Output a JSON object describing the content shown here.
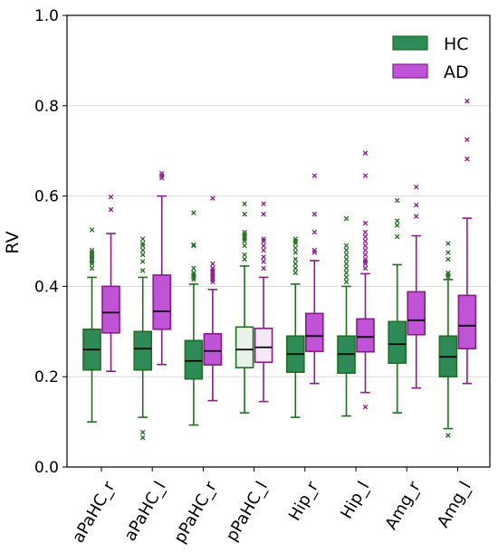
{
  "chart_data": {
    "type": "box",
    "ylabel": "RV",
    "xlabel": "",
    "ylim": [
      0.0,
      1.0
    ],
    "yticks": [
      "0.0",
      "0.2",
      "0.4",
      "0.6",
      "0.8",
      "1.0"
    ],
    "grid": "horizontal",
    "legend_position": "top-right",
    "categories": [
      "aPaHC_r",
      "aPaHC_l",
      "pPaHC_r",
      "pPaHC_l",
      "Hip_r",
      "Hip_l",
      "Amg_r",
      "Amg_l"
    ],
    "series": [
      {
        "name": "HC",
        "color": "#2e8b57",
        "edge_color": "#1f6e1f",
        "boxes": [
          {
            "whislo": 0.1,
            "q1": 0.215,
            "med": 0.26,
            "q3": 0.305,
            "whishi": 0.42,
            "fliers": [
              0.44,
              0.45,
              0.455,
              0.46,
              0.465,
              0.47,
              0.475,
              0.48,
              0.525
            ]
          },
          {
            "whislo": 0.11,
            "q1": 0.215,
            "med": 0.262,
            "q3": 0.3,
            "whishi": 0.42,
            "fliers": [
              0.065,
              0.077,
              0.435,
              0.455,
              0.47,
              0.48,
              0.49,
              0.495,
              0.505
            ]
          },
          {
            "whislo": 0.093,
            "q1": 0.195,
            "med": 0.235,
            "q3": 0.28,
            "whishi": 0.405,
            "fliers": [
              0.415,
              0.42,
              0.425,
              0.43,
              0.44,
              0.49,
              0.492,
              0.563
            ]
          },
          {
            "whislo": 0.12,
            "q1": 0.22,
            "med": 0.26,
            "q3": 0.31,
            "whishi": 0.445,
            "fliers": [
              0.46,
              0.47,
              0.49,
              0.5,
              0.505,
              0.51,
              0.515,
              0.52,
              0.56,
              0.583
            ]
          },
          {
            "whislo": 0.11,
            "q1": 0.21,
            "med": 0.25,
            "q3": 0.29,
            "whishi": 0.405,
            "fliers": [
              0.43,
              0.44,
              0.45,
              0.46,
              0.475,
              0.485,
              0.495,
              0.5,
              0.505
            ]
          },
          {
            "whislo": 0.113,
            "q1": 0.208,
            "med": 0.25,
            "q3": 0.29,
            "whishi": 0.4,
            "fliers": [
              0.41,
              0.42,
              0.43,
              0.44,
              0.45,
              0.46,
              0.47,
              0.48,
              0.49,
              0.55
            ]
          },
          {
            "whislo": 0.12,
            "q1": 0.23,
            "med": 0.272,
            "q3": 0.322,
            "whishi": 0.448,
            "fliers": [
              0.51,
              0.535,
              0.545,
              0.59
            ]
          },
          {
            "whislo": 0.085,
            "q1": 0.2,
            "med": 0.244,
            "q3": 0.29,
            "whishi": 0.415,
            "fliers": [
              0.07,
              0.42,
              0.425,
              0.43,
              0.46,
              0.475,
              0.495
            ]
          }
        ]
      },
      {
        "name": "AD",
        "color": "#bf55d6",
        "edge_color": "#8b1a8b",
        "boxes": [
          {
            "whislo": 0.212,
            "q1": 0.297,
            "med": 0.342,
            "q3": 0.4,
            "whishi": 0.517,
            "fliers": [
              0.57,
              0.598
            ]
          },
          {
            "whislo": 0.227,
            "q1": 0.305,
            "med": 0.345,
            "q3": 0.425,
            "whishi": 0.6,
            "fliers": [
              0.64,
              0.645,
              0.65
            ]
          },
          {
            "whislo": 0.147,
            "q1": 0.226,
            "med": 0.257,
            "q3": 0.295,
            "whishi": 0.393,
            "fliers": [
              0.41,
              0.415,
              0.42,
              0.425,
              0.43,
              0.435,
              0.44,
              0.45,
              0.595
            ]
          },
          {
            "whislo": 0.145,
            "q1": 0.232,
            "med": 0.265,
            "q3": 0.307,
            "whishi": 0.42,
            "fliers": [
              0.44,
              0.455,
              0.465,
              0.48,
              0.49,
              0.5,
              0.505,
              0.56,
              0.583
            ]
          },
          {
            "whislo": 0.185,
            "q1": 0.256,
            "med": 0.29,
            "q3": 0.34,
            "whishi": 0.457,
            "fliers": [
              0.475,
              0.48,
              0.52,
              0.56,
              0.645
            ]
          },
          {
            "whislo": 0.165,
            "q1": 0.255,
            "med": 0.288,
            "q3": 0.328,
            "whishi": 0.428,
            "fliers": [
              0.133,
              0.44,
              0.45,
              0.455,
              0.46,
              0.47,
              0.48,
              0.49,
              0.5,
              0.51,
              0.52,
              0.54,
              0.645,
              0.695
            ]
          },
          {
            "whislo": 0.175,
            "q1": 0.293,
            "med": 0.325,
            "q3": 0.388,
            "whishi": 0.512,
            "fliers": [
              0.555,
              0.58,
              0.62
            ]
          },
          {
            "whislo": 0.185,
            "q1": 0.262,
            "med": 0.313,
            "q3": 0.38,
            "whishi": 0.551,
            "fliers": [
              0.682,
              0.725,
              0.81
            ]
          }
        ]
      }
    ],
    "special_boxes": [
      {
        "category": "pPaHC_l",
        "note": "faded fill",
        "HC_fill": "#e8f2e8",
        "AD_fill": "#f7e8f7"
      }
    ]
  }
}
